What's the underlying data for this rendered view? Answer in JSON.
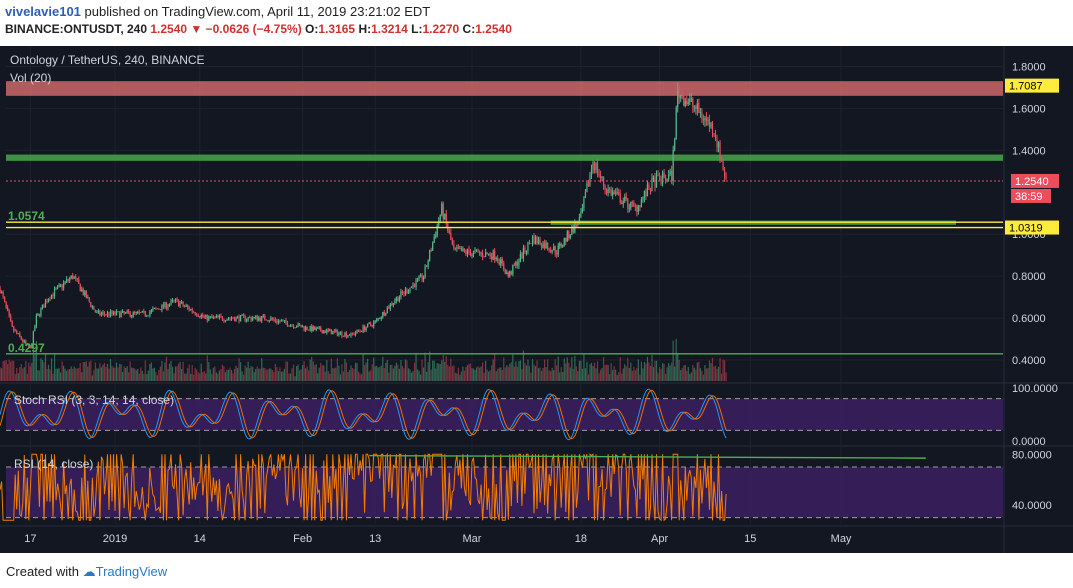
{
  "header": {
    "user": "vivelavie101",
    "published": "published on TradingView.com, April 11, 2019 23:21:02 EDT",
    "symbol": "BINANCE:ONTUSDT, 240",
    "change": "1.2540 ▼ −0.0626 (−4.75%)",
    "o_label": "O:",
    "o_value": "1.3165",
    "h_label": "H:",
    "h_value": "1.3214",
    "l_label": "L:",
    "l_value": "1.2270",
    "c_label": "C:",
    "c_value": "1.2540"
  },
  "footer": {
    "created_with": "Created with",
    "brand": "TradingView"
  },
  "colors": {
    "background": "#131722",
    "up": "#53b987",
    "down": "#eb4d5c",
    "resistance_zone": "#e57373",
    "support_zone": "#4caf50",
    "fib_line": "#ffeb3b",
    "stoch_k": "#2196f3",
    "stoch_d": "#ef6c00",
    "rsi_line": "#f57c00",
    "indicator_band": "#3a1f5d"
  },
  "chart_data": [
    {
      "type": "candlestick",
      "title": "Ontology / TetherUS, 240, BINANCE",
      "volume_label": "Vol (20)",
      "ylim": [
        0.3,
        1.85
      ],
      "y_ticks": [
        "1.8000",
        "1.6000",
        "1.4000",
        "1.0000",
        "0.8000",
        "0.6000",
        "0.4000"
      ],
      "x_ticks": [
        "17",
        "2019",
        "14",
        "Feb",
        "13",
        "Mar",
        "18",
        "Apr",
        "15",
        "May"
      ],
      "price_anchors": [
        {
          "date": "Dec 12",
          "price": 0.74
        },
        {
          "date": "Dec 14",
          "price": 0.55
        },
        {
          "date": "Dec 17",
          "price": 0.45
        },
        {
          "date": "Dec 18",
          "price": 0.6
        },
        {
          "date": "Dec 20",
          "price": 0.7
        },
        {
          "date": "Dec 24",
          "price": 0.8
        },
        {
          "date": "Dec 28",
          "price": 0.62
        },
        {
          "date": "Jan 5",
          "price": 0.62
        },
        {
          "date": "Jan 10",
          "price": 0.68
        },
        {
          "date": "Jan 15",
          "price": 0.6
        },
        {
          "date": "Jan 25",
          "price": 0.6
        },
        {
          "date": "Feb 1",
          "price": 0.55
        },
        {
          "date": "Feb 8",
          "price": 0.52
        },
        {
          "date": "Feb 12",
          "price": 0.58
        },
        {
          "date": "Feb 15",
          "price": 0.68
        },
        {
          "date": "Feb 20",
          "price": 0.8
        },
        {
          "date": "Feb 23",
          "price": 1.12
        },
        {
          "date": "Feb 25",
          "price": 0.92
        },
        {
          "date": "Mar 4",
          "price": 0.9
        },
        {
          "date": "Mar 6",
          "price": 0.8
        },
        {
          "date": "Mar 10",
          "price": 0.98
        },
        {
          "date": "Mar 14",
          "price": 0.92
        },
        {
          "date": "Mar 18",
          "price": 1.08
        },
        {
          "date": "Mar 20",
          "price": 1.35
        },
        {
          "date": "Mar 22",
          "price": 1.22
        },
        {
          "date": "Mar 27",
          "price": 1.12
        },
        {
          "date": "Mar 30",
          "price": 1.25
        },
        {
          "date": "Apr 2",
          "price": 1.28
        },
        {
          "date": "Apr 3",
          "price": 1.68
        },
        {
          "date": "Apr 6",
          "price": 1.6
        },
        {
          "date": "Apr 9",
          "price": 1.5
        },
        {
          "date": "Apr 11",
          "price": 1.254
        }
      ],
      "last_price": {
        "value": 1.254,
        "label": "1.2540",
        "countdown": "38:59"
      },
      "zones": [
        {
          "name": "resistance",
          "from": 1.66,
          "to": 1.73,
          "label": "1.7087"
        },
        {
          "name": "support-upper",
          "from": 1.35,
          "to": 1.38
        }
      ],
      "lines": [
        {
          "name": "fib-1.0574",
          "value": 1.0574,
          "label": "1.0574"
        },
        {
          "name": "fib-1.0319",
          "value": 1.0319,
          "label": "1.0319"
        },
        {
          "name": "fib-0.4297",
          "value": 0.4297,
          "label": "0.4297"
        }
      ]
    },
    {
      "type": "line",
      "title": "Stoch RSI (3, 3, 14, 14, close)",
      "ylim": [
        0,
        100
      ],
      "y_ticks": [
        "100.0000",
        "0.0000"
      ],
      "bands": [
        80,
        20
      ]
    },
    {
      "type": "line",
      "title": "RSI (14, close)",
      "ylim": [
        25,
        85
      ],
      "y_ticks": [
        "80.0000",
        "40.0000"
      ],
      "bands": [
        70,
        30
      ]
    }
  ]
}
